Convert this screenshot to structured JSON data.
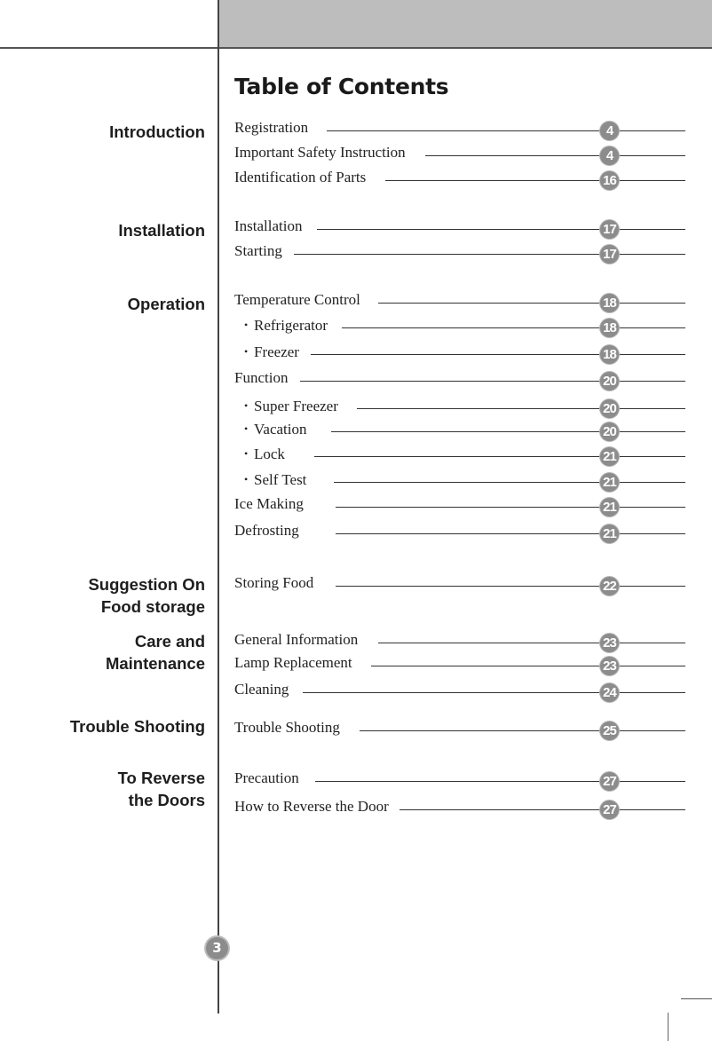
{
  "title": "Table of Contents",
  "page_number": "3",
  "badge_color": "#8c8c8c",
  "sections": [
    {
      "label_lines": [
        "Introduction"
      ]
    },
    {
      "label_lines": [
        "Installation"
      ]
    },
    {
      "label_lines": [
        "Operation"
      ]
    },
    {
      "label_lines": [
        "Suggestion On",
        "Food storage"
      ]
    },
    {
      "label_lines": [
        "Care and",
        "Maintenance"
      ]
    },
    {
      "label_lines": [
        "Trouble Shooting"
      ]
    },
    {
      "label_lines": [
        "To Reverse",
        "the Doors"
      ]
    }
  ],
  "entries": [
    {
      "text": "Registration",
      "page": "4",
      "bullet": false
    },
    {
      "text": "Important Safety Instruction",
      "page": "4",
      "bullet": false
    },
    {
      "text": "Identification of Parts",
      "page": "16",
      "bullet": false
    },
    {
      "text": "Installation",
      "page": "17",
      "bullet": false
    },
    {
      "text": "Starting",
      "page": "17",
      "bullet": false
    },
    {
      "text": "Temperature Control",
      "page": "18",
      "bullet": false
    },
    {
      "text": "Refrigerator",
      "page": "18",
      "bullet": true
    },
    {
      "text": "Freezer",
      "page": "18",
      "bullet": true
    },
    {
      "text": "Function",
      "page": "20",
      "bullet": false
    },
    {
      "text": "Super Freezer",
      "page": "20",
      "bullet": true
    },
    {
      "text": "Vacation",
      "page": "20",
      "bullet": true
    },
    {
      "text": "Lock",
      "page": "21",
      "bullet": true
    },
    {
      "text": "Self Test",
      "page": "21",
      "bullet": true
    },
    {
      "text": "Ice Making",
      "page": "21",
      "bullet": false
    },
    {
      "text": "Defrosting",
      "page": "21",
      "bullet": false
    },
    {
      "text": "Storing Food",
      "page": "22",
      "bullet": false
    },
    {
      "text": "General Information",
      "page": "23",
      "bullet": false
    },
    {
      "text": "Lamp Replacement",
      "page": "23",
      "bullet": false
    },
    {
      "text": "Cleaning",
      "page": "24",
      "bullet": false
    },
    {
      "text": "Trouble Shooting",
      "page": "25",
      "bullet": false
    },
    {
      "text": "Precaution",
      "page": "27",
      "bullet": false
    },
    {
      "text": "How to Reverse the Door",
      "page": "27",
      "bullet": false
    }
  ]
}
